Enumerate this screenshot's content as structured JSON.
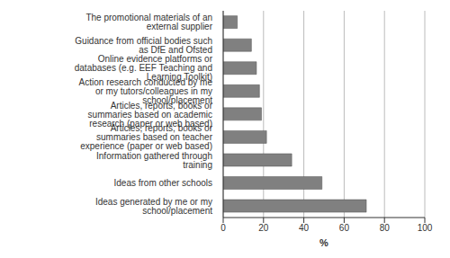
{
  "chart_data": {
    "type": "bar",
    "orientation": "horizontal",
    "categories": [
      "The promotional materials of an external supplier",
      "Guidance from official bodies such as DfE and Ofsted",
      "Online evidence platforms or databases (e.g. EEF Teaching and Learning Toolkit)",
      "Action research conducted by me or my tutors/colleagues in my school/placement",
      "Articles, reports, books or summaries based on academic research (paper or web based)",
      "Articles, reports, books or summaries based on teacher experience (paper or web based)",
      "Information gathered through training",
      "Ideas from other schools",
      "Ideas generated by me or my school/placement"
    ],
    "values": [
      7,
      14,
      16.5,
      18,
      19,
      21.5,
      34,
      49,
      71
    ],
    "color": "#808080",
    "x_label": "%",
    "xlim": [
      0,
      100
    ],
    "xticks": [
      0,
      20,
      40,
      60,
      80,
      100
    ],
    "grid": true
  }
}
